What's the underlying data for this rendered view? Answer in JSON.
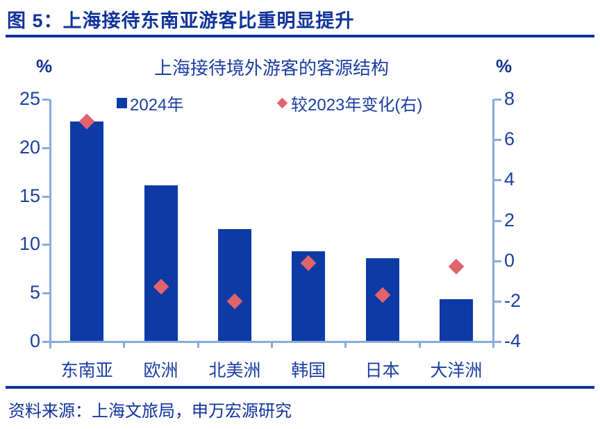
{
  "header": {
    "title": "图 5：上海接待东南亚游客比重明显提升"
  },
  "footer": {
    "source": "资料来源：上海文旅局，申万宏源研究"
  },
  "colors": {
    "bar_blue": "#0D3AA5",
    "diamond_red": "#E0646B",
    "axis_light_blue": "#86ACDC",
    "text_blue": "#1C3EA2",
    "title_navy": "#10339B"
  },
  "chart_data": {
    "type": "bar",
    "title": "上海接待境外游客的客源结构",
    "categories": [
      "东南亚",
      "欧洲",
      "北美洲",
      "韩国",
      "日本",
      "大洋洲"
    ],
    "series": [
      {
        "name": "2024年",
        "type": "bar",
        "axis": "left",
        "marker": "square",
        "color": "#0D3AA5",
        "values": [
          22.7,
          16.1,
          11.6,
          9.3,
          8.6,
          4.4
        ]
      },
      {
        "name": "较2023年变化(右)",
        "type": "scatter",
        "axis": "right",
        "marker": "diamond",
        "color": "#E0646B",
        "values": [
          6.9,
          -1.3,
          -2.0,
          -0.1,
          -1.7,
          -0.3
        ]
      }
    ],
    "left_axis": {
      "unit": "%",
      "range": [
        0,
        25
      ],
      "ticks": [
        0,
        5,
        10,
        15,
        20,
        25
      ]
    },
    "right_axis": {
      "unit": "%",
      "range": [
        -4,
        8
      ],
      "ticks": [
        -4,
        -2,
        0,
        2,
        4,
        6,
        8
      ]
    },
    "legend_position": "top",
    "grid": false
  }
}
